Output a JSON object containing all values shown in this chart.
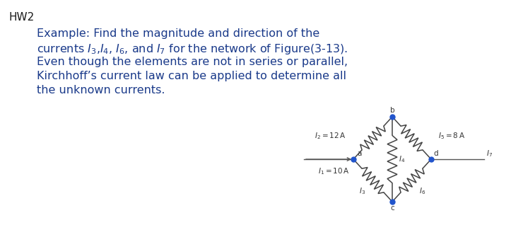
{
  "title": "HW2",
  "title_color": "#1a1a1a",
  "title_fontsize": 11,
  "body_text_color": "#1a3a8a",
  "body_fontsize": 11.5,
  "line1": "Example: Find the magnitude and direction of the",
  "line3": "Even though the elements are not in series or parallel,",
  "line4": "Kirchhoff’s current law can be applied to determine all",
  "line5": "the unknown currents.",
  "background_color": "#ffffff",
  "diagram": {
    "node_color": "#2255cc",
    "wire_color": "#555555",
    "resistor_color": "#444444",
    "label_color": "#333333",
    "text_color": "#333333"
  }
}
